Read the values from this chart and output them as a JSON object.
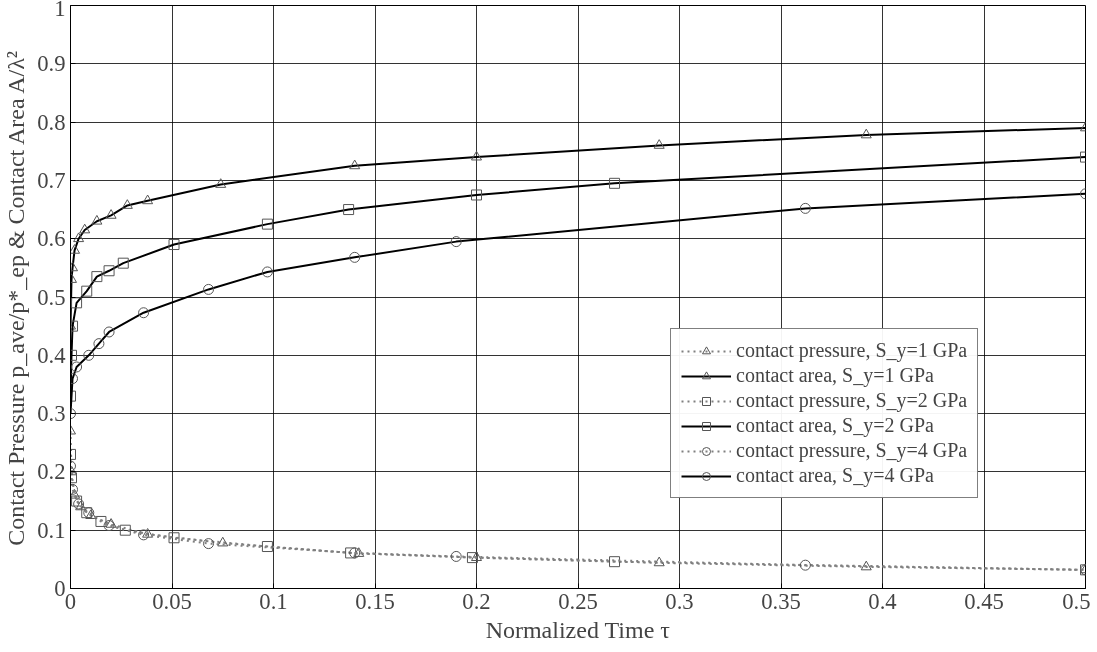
{
  "chart_data": {
    "type": "line",
    "xlabel": "Normalized Time τ",
    "ylabel": "Contact Pressure p_ave/p*_ep & Contact Area A/λ²",
    "xlim": [
      0,
      0.5
    ],
    "ylim": [
      0,
      1
    ],
    "xticks": [
      0,
      0.05,
      0.1,
      0.15,
      0.2,
      0.25,
      0.3,
      0.35,
      0.4,
      0.45,
      0.5
    ],
    "yticks": [
      0,
      0.1,
      0.2,
      0.3,
      0.4,
      0.5,
      0.6,
      0.7,
      0.8,
      0.9,
      1
    ],
    "grid": true,
    "legend": "right",
    "series": [
      {
        "name": "contact pressure, S_y=1 GPa",
        "color": "#808080",
        "line_style": "dotted",
        "marker": "triangle",
        "x": [
          0,
          0.0005,
          0.002,
          0.005,
          0.01,
          0.02,
          0.038,
          0.075,
          0.142,
          0.2,
          0.29,
          0.392,
          0.5
        ],
        "values": [
          0.27,
          0.2,
          0.16,
          0.14,
          0.125,
          0.11,
          0.093,
          0.078,
          0.06,
          0.053,
          0.044,
          0.037,
          0.032
        ]
      },
      {
        "name": "contact area, S_y=1 GPa",
        "color": "#000000",
        "line_style": "solid",
        "marker": "triangle",
        "x": [
          0,
          0.0005,
          0.001,
          0.002,
          0.004,
          0.007,
          0.013,
          0.02,
          0.028,
          0.038,
          0.074,
          0.14,
          0.2,
          0.29,
          0.392,
          0.5
        ],
        "values": [
          0.45,
          0.53,
          0.55,
          0.58,
          0.6,
          0.615,
          0.63,
          0.64,
          0.657,
          0.665,
          0.693,
          0.725,
          0.74,
          0.76,
          0.778,
          0.79
        ]
      },
      {
        "name": "contact pressure, S_y=2 GPa",
        "color": "#808080",
        "line_style": "dotted",
        "marker": "square",
        "x": [
          0,
          0.0005,
          0.003,
          0.008,
          0.015,
          0.027,
          0.051,
          0.097,
          0.138,
          0.198,
          0.268,
          0.5
        ],
        "values": [
          0.23,
          0.19,
          0.15,
          0.13,
          0.115,
          0.1,
          0.087,
          0.072,
          0.061,
          0.053,
          0.046,
          0.032
        ]
      },
      {
        "name": "contact area, S_y=2 GPa",
        "color": "#000000",
        "line_style": "solid",
        "marker": "square",
        "x": [
          0,
          0.0005,
          0.001,
          0.003,
          0.008,
          0.013,
          0.019,
          0.026,
          0.051,
          0.097,
          0.137,
          0.2,
          0.268,
          0.5
        ],
        "values": [
          0.33,
          0.4,
          0.45,
          0.49,
          0.51,
          0.535,
          0.545,
          0.558,
          0.59,
          0.625,
          0.65,
          0.675,
          0.695,
          0.74
        ]
      },
      {
        "name": "contact pressure, S_y=4 GPa",
        "color": "#808080",
        "line_style": "dotted",
        "marker": "circle",
        "x": [
          0,
          0.001,
          0.004,
          0.009,
          0.019,
          0.036,
          0.068,
          0.14,
          0.19,
          0.362,
          0.5
        ],
        "values": [
          0.21,
          0.17,
          0.145,
          0.13,
          0.108,
          0.092,
          0.077,
          0.061,
          0.055,
          0.04,
          0.032
        ]
      },
      {
        "name": "contact area, S_y=4 GPa",
        "color": "#000000",
        "line_style": "solid",
        "marker": "circle",
        "x": [
          0,
          0.001,
          0.003,
          0.009,
          0.014,
          0.019,
          0.036,
          0.068,
          0.097,
          0.14,
          0.19,
          0.362,
          0.5
        ],
        "values": [
          0.3,
          0.36,
          0.38,
          0.4,
          0.42,
          0.44,
          0.473,
          0.513,
          0.543,
          0.568,
          0.595,
          0.652,
          0.677
        ]
      }
    ]
  }
}
